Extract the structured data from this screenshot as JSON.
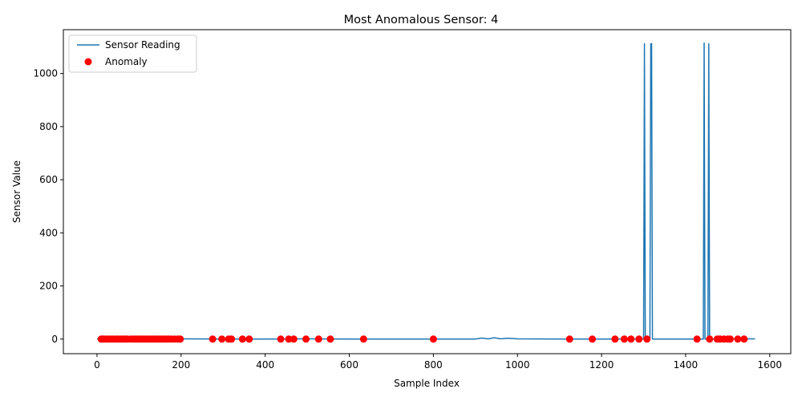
{
  "chart_data": {
    "type": "line",
    "title": "Most Anomalous Sensor: 4",
    "xlabel": "Sample Index",
    "ylabel": "Sensor Value",
    "xlim": [
      -80,
      1650
    ],
    "ylim": [
      -55,
      1165
    ],
    "xticks": [
      0,
      200,
      400,
      600,
      800,
      1000,
      1200,
      1400,
      1600
    ],
    "yticks": [
      0,
      200,
      400,
      600,
      800,
      1000
    ],
    "legend": {
      "placement": "top-left",
      "entries": [
        "Sensor Reading",
        "Anomaly"
      ]
    },
    "series": [
      {
        "name": "Sensor Reading",
        "color": "#1f77b4",
        "points": [
          [
            0,
            1
          ],
          [
            100,
            0
          ],
          [
            200,
            1
          ],
          [
            300,
            0
          ],
          [
            400,
            0
          ],
          [
            500,
            1
          ],
          [
            600,
            0
          ],
          [
            700,
            0
          ],
          [
            800,
            0
          ],
          [
            900,
            0
          ],
          [
            915,
            4
          ],
          [
            930,
            1
          ],
          [
            945,
            5
          ],
          [
            960,
            1
          ],
          [
            975,
            3
          ],
          [
            990,
            2
          ],
          [
            1000,
            1
          ],
          [
            1100,
            0
          ],
          [
            1200,
            0
          ],
          [
            1290,
            1
          ],
          [
            1300,
            0
          ],
          [
            1302,
            1112
          ],
          [
            1304,
            0
          ],
          [
            1315,
            0
          ],
          [
            1317,
            1112
          ],
          [
            1319,
            1112
          ],
          [
            1321,
            0
          ],
          [
            1400,
            0
          ],
          [
            1442,
            0
          ],
          [
            1444,
            1115
          ],
          [
            1446,
            0
          ],
          [
            1453,
            0
          ],
          [
            1455,
            1112
          ],
          [
            1457,
            0
          ],
          [
            1500,
            1
          ],
          [
            1565,
            1
          ]
        ]
      },
      {
        "name": "Anomaly",
        "color": "#ff0000",
        "points": [
          [
            10,
            0
          ],
          [
            15,
            0
          ],
          [
            20,
            0
          ],
          [
            25,
            0
          ],
          [
            32,
            0
          ],
          [
            37,
            0
          ],
          [
            44,
            0
          ],
          [
            50,
            0
          ],
          [
            56,
            0
          ],
          [
            62,
            0
          ],
          [
            68,
            0
          ],
          [
            72,
            0
          ],
          [
            80,
            0
          ],
          [
            86,
            0
          ],
          [
            92,
            0
          ],
          [
            98,
            0
          ],
          [
            104,
            0
          ],
          [
            110,
            0
          ],
          [
            116,
            0
          ],
          [
            122,
            0
          ],
          [
            128,
            0
          ],
          [
            134,
            0
          ],
          [
            140,
            0
          ],
          [
            146,
            0
          ],
          [
            152,
            0
          ],
          [
            158,
            0
          ],
          [
            164,
            0
          ],
          [
            170,
            0
          ],
          [
            176,
            0
          ],
          [
            184,
            0
          ],
          [
            192,
            0
          ],
          [
            198,
            0
          ],
          [
            275,
            0
          ],
          [
            297,
            0
          ],
          [
            313,
            0
          ],
          [
            320,
            0
          ],
          [
            346,
            0
          ],
          [
            362,
            0
          ],
          [
            437,
            0
          ],
          [
            456,
            0
          ],
          [
            468,
            0
          ],
          [
            497,
            0
          ],
          [
            527,
            0
          ],
          [
            555,
            0
          ],
          [
            634,
            0
          ],
          [
            800,
            0
          ],
          [
            1124,
            0
          ],
          [
            1178,
            0
          ],
          [
            1232,
            0
          ],
          [
            1254,
            0
          ],
          [
            1270,
            0
          ],
          [
            1289,
            0
          ],
          [
            1308,
            0
          ],
          [
            1427,
            0
          ],
          [
            1457,
            0
          ],
          [
            1475,
            0
          ],
          [
            1482,
            0
          ],
          [
            1491,
            0
          ],
          [
            1500,
            0
          ],
          [
            1506,
            0
          ],
          [
            1524,
            0
          ],
          [
            1539,
            0
          ]
        ]
      }
    ],
    "grid": false
  }
}
